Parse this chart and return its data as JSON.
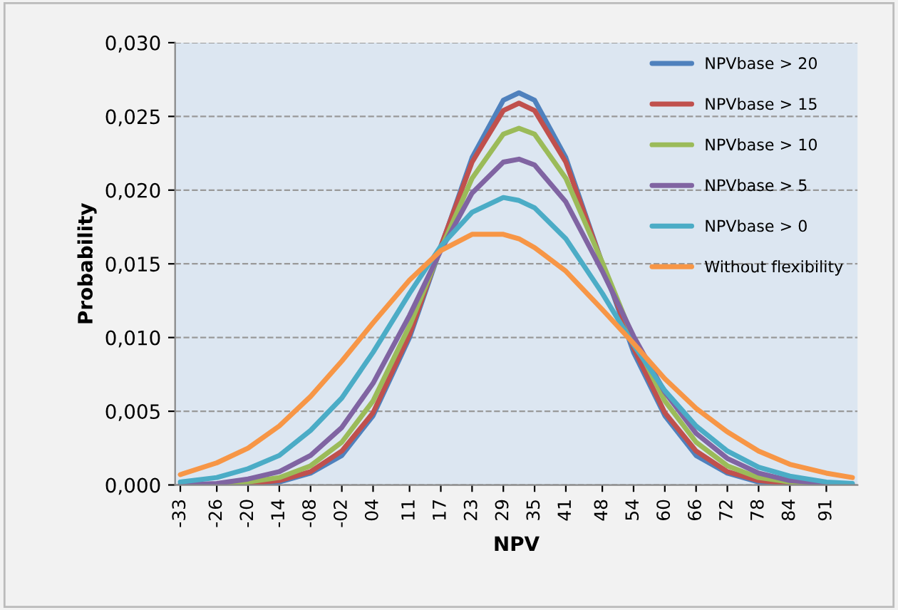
{
  "chart_data": {
    "type": "line",
    "xlabel": "NPV",
    "ylabel": "Probability",
    "x": [
      -33,
      -26,
      -20,
      -14,
      -8,
      -2,
      4,
      11,
      17,
      23,
      29,
      32,
      35,
      41,
      48,
      54,
      60,
      66,
      72,
      78,
      84,
      91,
      96
    ],
    "series": [
      {
        "name": "NPVbase > 20",
        "color": "#4f81bd",
        "values": [
          0.0,
          0.0,
          0.0001,
          0.0002,
          0.0008,
          0.002,
          0.0047,
          0.01,
          0.0161,
          0.0222,
          0.0261,
          0.0266,
          0.0261,
          0.0222,
          0.015,
          0.009,
          0.0047,
          0.002,
          0.0008,
          0.0002,
          0.0001,
          0.0,
          0.0
        ]
      },
      {
        "name": "NPVbase > 15",
        "color": "#c0504d",
        "values": [
          0.0,
          0.0,
          0.0001,
          0.0003,
          0.0009,
          0.0023,
          0.0049,
          0.0102,
          0.0162,
          0.0219,
          0.0254,
          0.0259,
          0.0254,
          0.0219,
          0.015,
          0.0093,
          0.0049,
          0.0023,
          0.0009,
          0.0003,
          0.0001,
          0.0,
          0.0
        ]
      },
      {
        "name": "NPVbase > 10",
        "color": "#9bbb59",
        "values": [
          0.0,
          0.0,
          0.0002,
          0.0005,
          0.0013,
          0.0029,
          0.0057,
          0.0108,
          0.016,
          0.0208,
          0.0238,
          0.0242,
          0.0238,
          0.0208,
          0.0151,
          0.0099,
          0.0057,
          0.0029,
          0.0013,
          0.0005,
          0.0002,
          0.0,
          0.0
        ]
      },
      {
        "name": "NPVbase > 5",
        "color": "#8064a2",
        "values": [
          0.0,
          0.0001,
          0.0004,
          0.0009,
          0.002,
          0.0039,
          0.0069,
          0.0115,
          0.0159,
          0.0198,
          0.0219,
          0.0221,
          0.0217,
          0.0192,
          0.0145,
          0.0101,
          0.0063,
          0.0035,
          0.0018,
          0.0008,
          0.0003,
          0.0001,
          0.0
        ]
      },
      {
        "name": "NPVbase > 0",
        "color": "#4bacc6",
        "values": [
          0.0002,
          0.0005,
          0.0011,
          0.002,
          0.0037,
          0.0059,
          0.009,
          0.013,
          0.0162,
          0.0185,
          0.0195,
          0.0193,
          0.0188,
          0.0167,
          0.013,
          0.0095,
          0.0064,
          0.004,
          0.0023,
          0.0012,
          0.0006,
          0.0002,
          0.0001
        ]
      },
      {
        "name": "Without flexibility",
        "color": "#f79646",
        "values": [
          0.0007,
          0.0015,
          0.0025,
          0.004,
          0.006,
          0.0084,
          0.011,
          0.0139,
          0.0159,
          0.017,
          0.017,
          0.0167,
          0.0161,
          0.0145,
          0.0119,
          0.0096,
          0.0072,
          0.0052,
          0.0036,
          0.0023,
          0.0014,
          0.0008,
          0.0005
        ]
      }
    ],
    "xlim": [
      -34,
      97
    ],
    "xticks": [
      -33,
      -26,
      -20,
      -14,
      {
        "value": -8,
        "label": "-08"
      },
      {
        "value": -2,
        "label": "-02"
      },
      {
        "value": 4,
        "label": "04"
      },
      11,
      17,
      23,
      29,
      35,
      41,
      48,
      54,
      60,
      66,
      72,
      78,
      84,
      91
    ],
    "ylim": [
      0,
      0.03
    ],
    "yticks": [
      {
        "value": 0,
        "label": "0,000"
      },
      {
        "value": 0.005,
        "label": "0,005"
      },
      {
        "value": 0.01,
        "label": "0,010"
      },
      {
        "value": 0.015,
        "label": "0,015"
      },
      {
        "value": 0.02,
        "label": "0,020"
      },
      {
        "value": 0.025,
        "label": "0,025"
      },
      {
        "value": 0.03,
        "label": "0,030"
      }
    ],
    "grid": "y",
    "legend": "top right",
    "marker": "none",
    "line_style": "solid"
  }
}
